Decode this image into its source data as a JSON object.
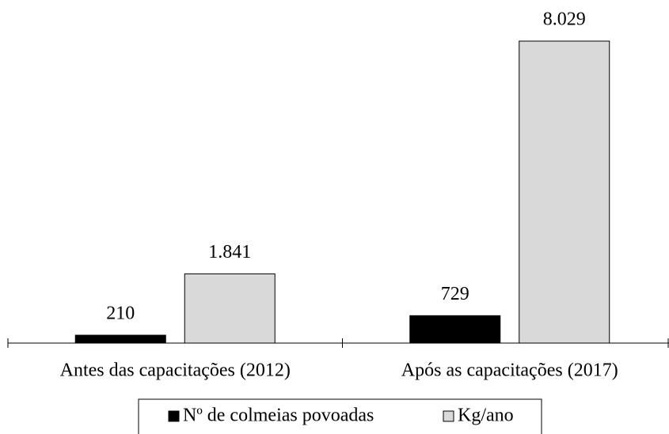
{
  "chart_data": {
    "type": "bar",
    "categories": [
      "Antes das capacitações (2012)",
      "Após as capacitações (2017)"
    ],
    "series": [
      {
        "name": "Nº de colmeias povoadas",
        "color": "#000000",
        "values": [
          210,
          729
        ],
        "value_labels": [
          "210",
          "729"
        ]
      },
      {
        "name": "Kg/ano",
        "color": "#d9d9d9",
        "values": [
          1841,
          8029
        ],
        "value_labels": [
          "1.841",
          "8.029"
        ]
      }
    ],
    "legend": "bottom"
  }
}
